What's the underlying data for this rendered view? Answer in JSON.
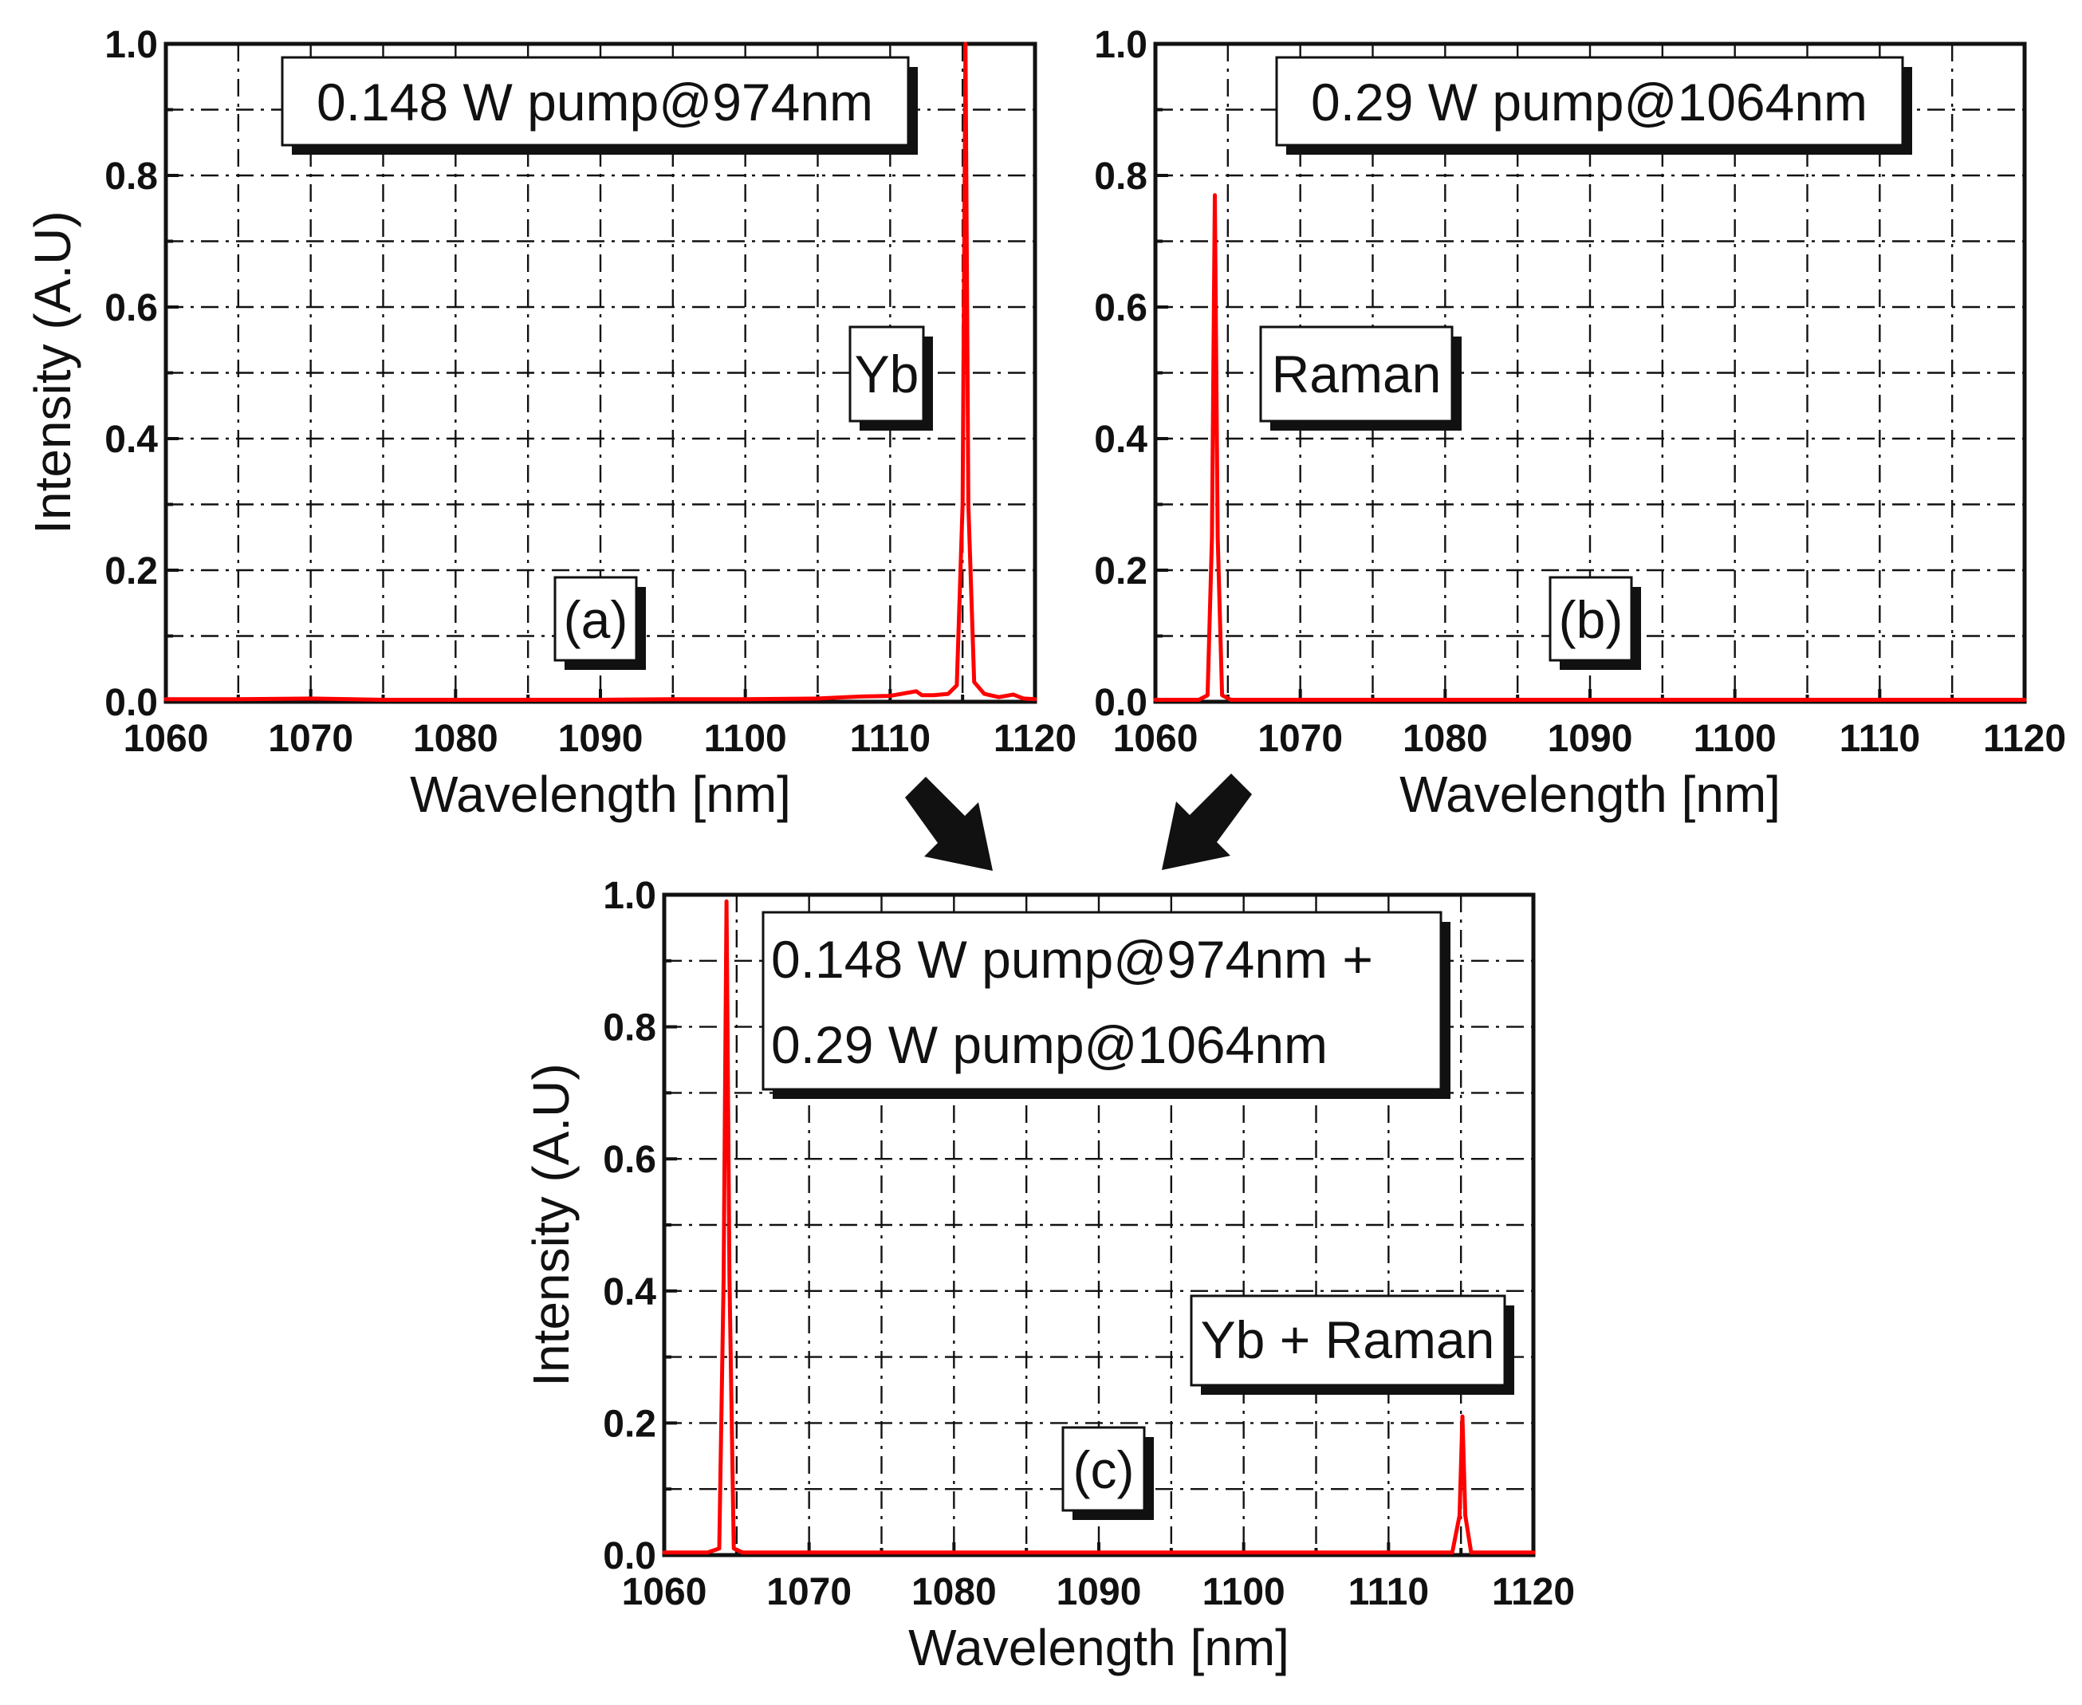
{
  "colors": {
    "series": "#ff0000",
    "axis": "#111111",
    "arrow": "#111111"
  },
  "arrows": [
    {
      "name": "arrow-from-a",
      "direction": "down-right"
    },
    {
      "name": "arrow-from-b",
      "direction": "down-left"
    }
  ],
  "chart_data": [
    {
      "id": "a",
      "type": "line",
      "panel_label": "(a)",
      "title": "",
      "xlabel": "Wavelength [nm]",
      "ylabel": "Intensity (A.U)",
      "xlim": [
        1060,
        1120
      ],
      "ylim": [
        0.0,
        1.0
      ],
      "xticks": [
        1060,
        1070,
        1080,
        1090,
        1100,
        1110,
        1120
      ],
      "xtick_labels": [
        "1060",
        "1070",
        "1080",
        "1090",
        "1100",
        "1110",
        "1120"
      ],
      "yticks": [
        0.0,
        0.2,
        0.4,
        0.6,
        0.8,
        1.0
      ],
      "ytick_labels": [
        "0.0",
        "0.2",
        "0.4",
        "0.6",
        "0.8",
        "1.0"
      ],
      "grid": true,
      "annotations": [
        "0.148 W pump@974nm",
        "Yb"
      ],
      "series": [
        {
          "name": "spectrum",
          "x": [
            1060,
            1065,
            1070,
            1075,
            1080,
            1085,
            1090,
            1095,
            1100,
            1105,
            1108,
            1110,
            1111.8,
            1112.2,
            1113,
            1114,
            1114.6,
            1115.0,
            1115.2,
            1115.4,
            1115.8,
            1116.5,
            1117.5,
            1118.5,
            1119.2,
            1120
          ],
          "y": [
            0.004,
            0.004,
            0.005,
            0.003,
            0.003,
            0.003,
            0.003,
            0.004,
            0.004,
            0.005,
            0.008,
            0.009,
            0.016,
            0.01,
            0.01,
            0.012,
            0.025,
            0.3,
            1.0,
            0.3,
            0.03,
            0.012,
            0.007,
            0.011,
            0.005,
            0.004
          ]
        }
      ]
    },
    {
      "id": "b",
      "type": "line",
      "panel_label": "(b)",
      "title": "",
      "xlabel": "Wavelength [nm]",
      "ylabel": "",
      "xlim": [
        1060,
        1120
      ],
      "ylim": [
        0.0,
        1.0
      ],
      "xticks": [
        1060,
        1070,
        1080,
        1090,
        1100,
        1110,
        1120
      ],
      "xtick_labels": [
        "1060",
        "1070",
        "1080",
        "1090",
        "1100",
        "1110",
        "1120"
      ],
      "yticks": [
        0.0,
        0.2,
        0.4,
        0.6,
        0.8,
        1.0
      ],
      "ytick_labels": [
        "0.0",
        "0.2",
        "0.4",
        "0.6",
        "0.8",
        "1.0"
      ],
      "grid": true,
      "annotations": [
        "0.29 W pump@1064nm",
        "Raman"
      ],
      "series": [
        {
          "name": "spectrum",
          "x": [
            1060,
            1063,
            1063.6,
            1063.9,
            1064.1,
            1064.3,
            1064.6,
            1065.2,
            1070,
            1080,
            1090,
            1100,
            1110,
            1120
          ],
          "y": [
            0.003,
            0.003,
            0.01,
            0.25,
            0.77,
            0.25,
            0.01,
            0.003,
            0.003,
            0.003,
            0.003,
            0.003,
            0.003,
            0.003
          ]
        }
      ]
    },
    {
      "id": "c",
      "type": "line",
      "panel_label": "(c)",
      "title": "",
      "xlabel": "Wavelength [nm]",
      "ylabel": "Intensity (A.U)",
      "xlim": [
        1060,
        1120
      ],
      "ylim": [
        0.0,
        1.0
      ],
      "xticks": [
        1060,
        1070,
        1080,
        1090,
        1100,
        1110,
        1120
      ],
      "xtick_labels": [
        "1060",
        "1070",
        "1080",
        "1090",
        "1100",
        "1110",
        "1120"
      ],
      "yticks": [
        0.0,
        0.2,
        0.4,
        0.6,
        0.8,
        1.0
      ],
      "ytick_labels": [
        "0.0",
        "0.2",
        "0.4",
        "0.6",
        "0.8",
        "1.0"
      ],
      "grid": true,
      "annotations": [
        "0.148 W pump@974nm +",
        "0.29 W pump@1064nm",
        "Yb + Raman"
      ],
      "series": [
        {
          "name": "spectrum",
          "x": [
            1060,
            1063,
            1063.8,
            1064.1,
            1064.3,
            1064.5,
            1064.8,
            1065.4,
            1070,
            1080,
            1090,
            1100,
            1110,
            1114.4,
            1114.9,
            1115.1,
            1115.3,
            1115.7,
            1116.3,
            1120
          ],
          "y": [
            0.004,
            0.004,
            0.01,
            0.42,
            0.99,
            0.42,
            0.01,
            0.004,
            0.004,
            0.004,
            0.004,
            0.004,
            0.004,
            0.004,
            0.06,
            0.21,
            0.06,
            0.004,
            0.004,
            0.004
          ]
        }
      ]
    }
  ]
}
